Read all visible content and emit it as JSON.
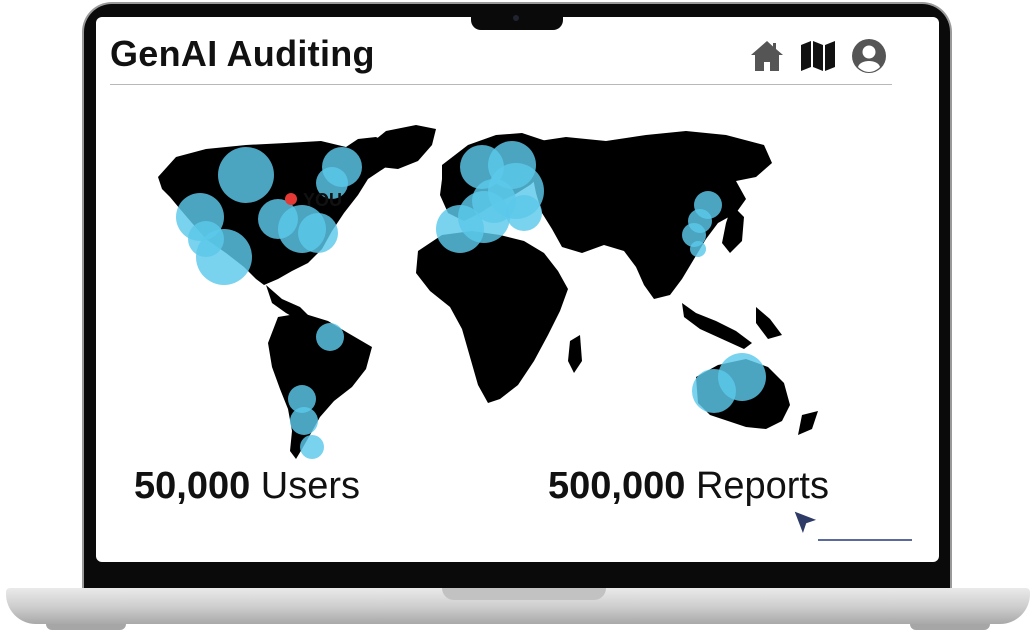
{
  "app": {
    "title": "GenAI Auditing"
  },
  "header_icons": [
    {
      "name": "home-icon"
    },
    {
      "name": "map-icon"
    },
    {
      "name": "user-profile-icon"
    }
  ],
  "map": {
    "you_label": "YOU",
    "you_marker_color": "#e53935",
    "bubble_color": "#5bc8ea",
    "land_color": "#000000"
  },
  "stats": {
    "users_value": "50,000",
    "users_label": "Users",
    "reports_value": "500,000",
    "reports_label": "Reports"
  }
}
